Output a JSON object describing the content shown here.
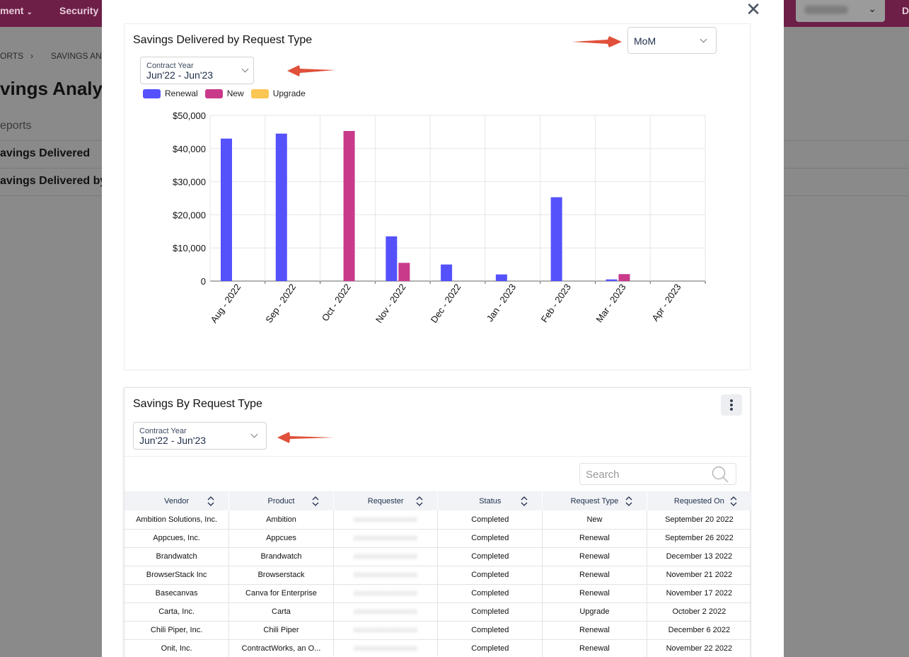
{
  "background": {
    "nav": [
      "ment",
      "Security"
    ],
    "edge_label": "D",
    "breadcrumb": [
      "ORTS",
      "SAVINGS ANA"
    ],
    "page_title": "vings Analysis",
    "rows": [
      "eports",
      "avings Delivered",
      "avings Delivered by"
    ]
  },
  "modal": {
    "close_label": "✕",
    "chart_card": {
      "title": "Savings Delivered by Request Type",
      "period_select": {
        "value": "MoM"
      },
      "year_select": {
        "caption": "Contract Year",
        "value": "Jun'22 - Jun'23"
      }
    },
    "table_card": {
      "title": "Savings By Request Type",
      "year_select": {
        "caption": "Contract Year",
        "value": "Jun'22 - Jun'23"
      },
      "search": {
        "placeholder": "Search"
      },
      "columns": [
        "Vendor",
        "Product",
        "Requester",
        "Status",
        "Request Type",
        "Requested On"
      ],
      "rows": [
        [
          "Ambition Solutions, Inc.",
          "Ambition",
          "(redacted)",
          "Completed",
          "New",
          "September 20 2022"
        ],
        [
          "Appcues, Inc.",
          "Appcues",
          "(redacted)",
          "Completed",
          "Renewal",
          "September 26 2022"
        ],
        [
          "Brandwatch",
          "Brandwatch",
          "(redacted)",
          "Completed",
          "Renewal",
          "December 13 2022"
        ],
        [
          "BrowserStack Inc",
          "Browserstack",
          "(redacted)",
          "Completed",
          "Renewal",
          "November 21 2022"
        ],
        [
          "Basecanvas",
          "Canva for Enterprise",
          "(redacted)",
          "Completed",
          "Renewal",
          "November 17 2022"
        ],
        [
          "Carta, Inc.",
          "Carta",
          "(redacted)",
          "Completed",
          "Upgrade",
          "October 2 2022"
        ],
        [
          "Chili Piper, Inc.",
          "Chili Piper",
          "(redacted)",
          "Completed",
          "Renewal",
          "December 6 2022"
        ],
        [
          "Onit, Inc.",
          "ContractWorks, an O...",
          "(redacted)",
          "Completed",
          "Renewal",
          "November 22 2022"
        ]
      ]
    }
  },
  "colors": {
    "renewal": "#5551fb",
    "new": "#c93a8a",
    "upgrade": "#fcc654",
    "arrow": "#e0503a",
    "topbar": "#6d1f48"
  },
  "chart_data": {
    "type": "bar",
    "title": "Savings Delivered by Request Type",
    "categories": [
      "Aug - 2022",
      "Sep - 2022",
      "Oct - 2022",
      "Nov - 2022",
      "Dec - 2022",
      "Jan - 2023",
      "Feb - 2023",
      "Mar - 2023",
      "Apr - 2023"
    ],
    "series": [
      {
        "name": "Renewal",
        "values": [
          43000,
          44500,
          0,
          13500,
          5000,
          2000,
          25300,
          500,
          0
        ]
      },
      {
        "name": "New",
        "values": [
          0,
          0,
          45300,
          5500,
          0,
          0,
          0,
          2100,
          0
        ]
      },
      {
        "name": "Upgrade",
        "values": [
          0,
          0,
          0,
          0,
          0,
          0,
          0,
          0,
          0
        ]
      }
    ],
    "yticks": [
      "$50,000",
      "$40,000",
      "$30,000",
      "$20,000",
      "$10,000",
      "0"
    ],
    "ylim": [
      0,
      50000
    ],
    "grid": true,
    "legend": "top-left"
  }
}
